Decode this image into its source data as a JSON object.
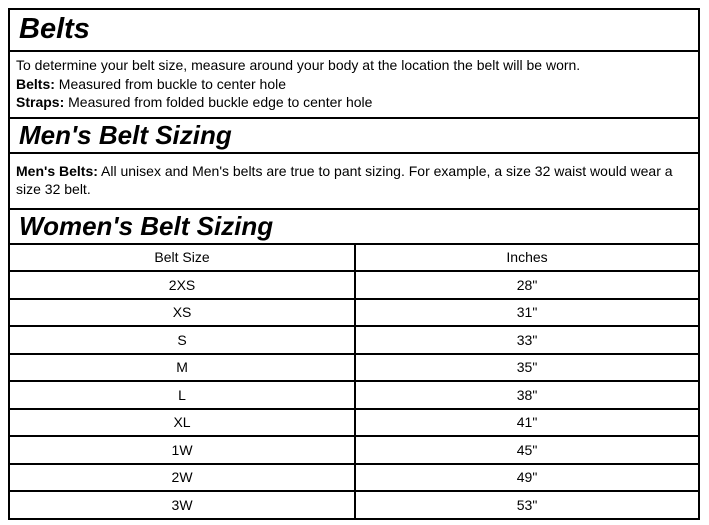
{
  "doc": {
    "title": "Belts",
    "intro": {
      "line1": "To determine your belt size, measure around your body at the location the belt will be worn.",
      "belts_label": "Belts:",
      "belts_text": " Measured from buckle to center hole",
      "straps_label": "Straps:",
      "straps_text": " Measured from folded buckle edge to center hole"
    },
    "mens": {
      "heading": "Men's Belt Sizing",
      "label": "Men's Belts:",
      "text": " All unisex and Men's belts are true to pant sizing. For example, a size 32 waist would wear a size 32 belt."
    },
    "womens": {
      "heading": "Women's Belt Sizing"
    },
    "table": {
      "headers": [
        "Belt Size",
        "Inches"
      ],
      "rows": [
        {
          "size": "2XS",
          "inches": "28\""
        },
        {
          "size": "XS",
          "inches": "31\""
        },
        {
          "size": "S",
          "inches": "33\""
        },
        {
          "size": "M",
          "inches": "35\""
        },
        {
          "size": "L",
          "inches": "38\""
        },
        {
          "size": "XL",
          "inches": "41\""
        },
        {
          "size": "1W",
          "inches": "45\""
        },
        {
          "size": "2W",
          "inches": "49\""
        },
        {
          "size": "3W",
          "inches": "53\""
        }
      ]
    },
    "colors": {
      "border": "#000000",
      "text": "#000000",
      "background": "#ffffff"
    }
  }
}
